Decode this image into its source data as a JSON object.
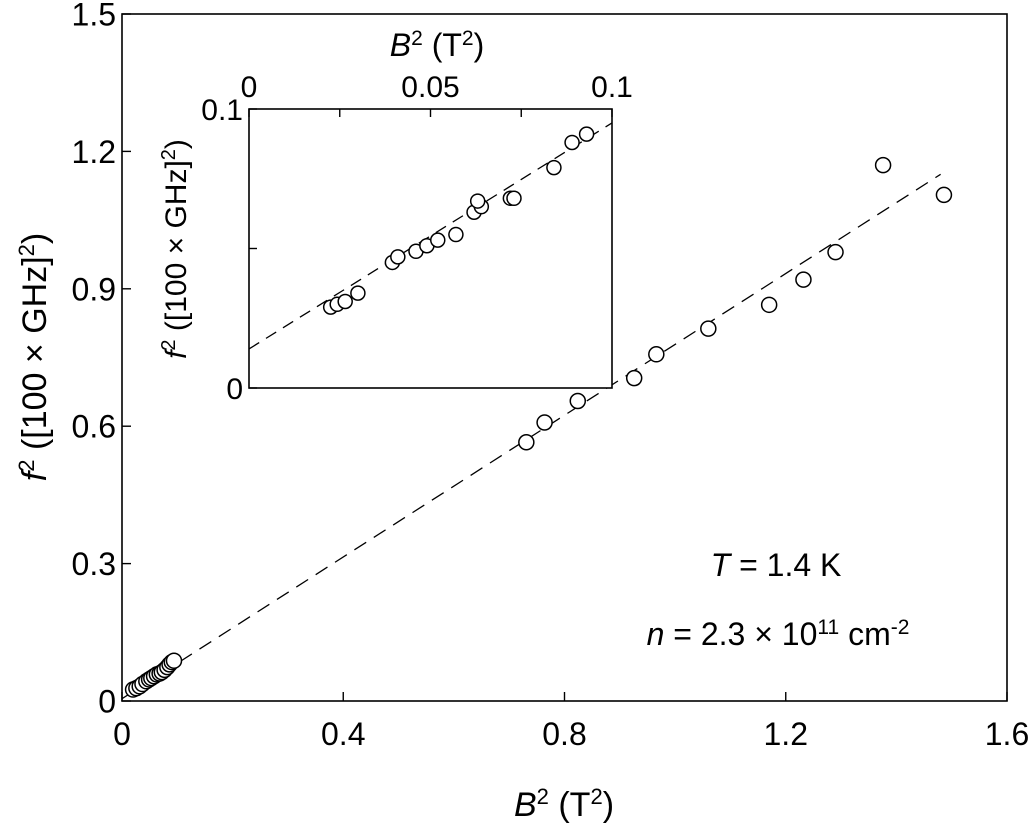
{
  "chart_data": [
    {
      "type": "scatter",
      "role": "main",
      "xlabel": {
        "var": "B",
        "sup": "2",
        "unit_pre": " (T",
        "unit_sup": "2",
        "unit_post": ")"
      },
      "ylabel": {
        "var": "f",
        "sup": "2",
        "text1": " ([100 × GHz]",
        "text1_sup": "2",
        "text2": ")"
      },
      "xlim": [
        0,
        1.6
      ],
      "ylim": [
        0,
        1.5
      ],
      "xticks": [
        "0",
        "0.4",
        "0.8",
        "1.2",
        "1.6"
      ],
      "xtick_values": [
        0,
        0.4,
        0.8,
        1.2,
        1.6
      ],
      "yticks": [
        "0",
        "0.3",
        "0.6",
        "0.9",
        "1.2",
        "1.5"
      ],
      "ytick_values": [
        0,
        0.3,
        0.6,
        0.9,
        1.2,
        1.5
      ],
      "grid": false,
      "points": [
        [
          0.02,
          0.025
        ],
        [
          0.026,
          0.028
        ],
        [
          0.032,
          0.032
        ],
        [
          0.037,
          0.037
        ],
        [
          0.044,
          0.043
        ],
        [
          0.049,
          0.047
        ],
        [
          0.053,
          0.05
        ],
        [
          0.058,
          0.054
        ],
        [
          0.063,
          0.058
        ],
        [
          0.068,
          0.06
        ],
        [
          0.072,
          0.063
        ],
        [
          0.077,
          0.068
        ],
        [
          0.082,
          0.074
        ],
        [
          0.086,
          0.08
        ],
        [
          0.09,
          0.085
        ],
        [
          0.094,
          0.088
        ],
        [
          0.731,
          0.565
        ],
        [
          0.764,
          0.608
        ],
        [
          0.824,
          0.655
        ],
        [
          0.926,
          0.705
        ],
        [
          0.966,
          0.757
        ],
        [
          1.06,
          0.813
        ],
        [
          1.17,
          0.865
        ],
        [
          1.232,
          0.92
        ],
        [
          1.29,
          0.98
        ],
        [
          1.376,
          1.17
        ],
        [
          1.486,
          1.105
        ]
      ],
      "fit_line": {
        "x": [
          0,
          1.48
        ],
        "y": [
          0.005,
          1.15
        ],
        "style": "dashed"
      },
      "annotations": [
        {
          "var": "T",
          "text": " = 1.4 K"
        },
        {
          "var": "n",
          "text": " = 2.3 × 10",
          "sup1": "11",
          "text2": " cm",
          "sup2": "-2"
        }
      ]
    },
    {
      "type": "scatter",
      "role": "inset",
      "xlabel": {
        "var": "B",
        "sup": "2",
        "unit_pre": " (T",
        "unit_sup": "2",
        "unit_post": ")"
      },
      "ylabel": {
        "var": "f",
        "sup": "2",
        "text1": " ([100 × GHz]",
        "text1_sup": "2",
        "text2": ")"
      },
      "xlim": [
        0,
        0.1
      ],
      "ylim": [
        0,
        0.1
      ],
      "xticks": [
        "0",
        "0.05",
        "0.1"
      ],
      "xtick_values": [
        0,
        0.05,
        0.1
      ],
      "yticks": [
        "0",
        "0.1"
      ],
      "ytick_values": [
        0,
        0.1
      ],
      "minor_xticks": [
        0.025,
        0.075
      ],
      "minor_yticks": [
        0.05
      ],
      "x_axis_position": "top",
      "points": [
        [
          0.0225,
          0.029
        ],
        [
          0.0243,
          0.03
        ],
        [
          0.0265,
          0.031
        ],
        [
          0.03,
          0.034
        ],
        [
          0.0395,
          0.045
        ],
        [
          0.041,
          0.047
        ],
        [
          0.046,
          0.049
        ],
        [
          0.049,
          0.051
        ],
        [
          0.052,
          0.053
        ],
        [
          0.057,
          0.055
        ],
        [
          0.062,
          0.063
        ],
        [
          0.064,
          0.065
        ],
        [
          0.063,
          0.067
        ],
        [
          0.072,
          0.068
        ],
        [
          0.073,
          0.068
        ],
        [
          0.084,
          0.079
        ],
        [
          0.089,
          0.088
        ],
        [
          0.093,
          0.091
        ]
      ],
      "fit_line": {
        "x": [
          0,
          0.1
        ],
        "y": [
          0.014,
          0.095
        ],
        "style": "dashed"
      }
    }
  ]
}
